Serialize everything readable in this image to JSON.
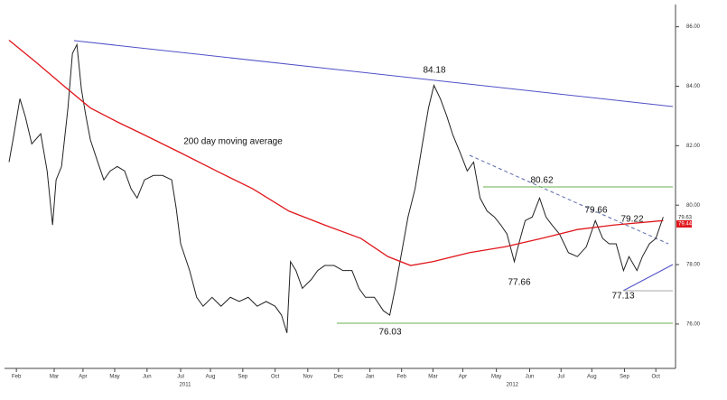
{
  "chart_data": {
    "type": "line",
    "xlim": [
      -0.23,
      20.5
    ],
    "ylim": [
      74.6,
      86.9
    ],
    "xticks": [
      {
        "value": 0,
        "label": "Feb"
      },
      {
        "value": 1.18,
        "label": "Mar"
      },
      {
        "value": 2.08,
        "label": "Apr"
      },
      {
        "value": 3.07,
        "label": "May"
      },
      {
        "value": 4.08,
        "label": "Jun"
      },
      {
        "value": 5.13,
        "label": "Jul"
      },
      {
        "value": 6.06,
        "label": "Aug"
      },
      {
        "value": 7.07,
        "label": "Sep"
      },
      {
        "value": 8.08,
        "label": "Oct"
      },
      {
        "value": 9.1,
        "label": "Nov"
      },
      {
        "value": 10.06,
        "label": "Dec"
      },
      {
        "value": 11.04,
        "label": "Jan"
      },
      {
        "value": 12.03,
        "label": "Feb"
      },
      {
        "value": 13.01,
        "label": "Mar"
      },
      {
        "value": 13.94,
        "label": "Apr"
      },
      {
        "value": 14.99,
        "label": "May"
      },
      {
        "value": 16.03,
        "label": "Jun"
      },
      {
        "value": 17.01,
        "label": "Jul"
      },
      {
        "value": 17.97,
        "label": "Aug"
      },
      {
        "value": 18.99,
        "label": "Sep"
      },
      {
        "value": 19.97,
        "label": "Oct"
      }
    ],
    "years": [
      {
        "value": 5.27,
        "label": "2011"
      },
      {
        "value": 15.49,
        "label": "2012"
      }
    ],
    "yticks": [
      {
        "value": 76,
        "label": "76.00"
      },
      {
        "value": 78,
        "label": "78.00"
      },
      {
        "value": 80,
        "label": "80.00"
      },
      {
        "value": 82,
        "label": "82.00"
      },
      {
        "value": 84,
        "label": "84.00"
      },
      {
        "value": 86,
        "label": "86.00"
      }
    ],
    "series": [
      {
        "color": "#222222",
        "x": [
          -0.23,
          -0.08,
          0.11,
          0.28,
          0.48,
          0.76,
          0.96,
          1.13,
          1.24,
          1.41,
          1.61,
          1.75,
          1.89,
          2.03,
          2.17,
          2.31,
          2.54,
          2.73,
          2.93,
          3.15,
          3.38,
          3.58,
          3.77,
          4,
          4.28,
          4.56,
          4.85,
          4.99,
          5.13,
          5.41,
          5.63,
          5.83,
          6.11,
          6.39,
          6.68,
          6.96,
          7.24,
          7.52,
          7.8,
          8.08,
          8.28,
          8.45,
          8.56,
          8.73,
          8.93,
          9.21,
          9.41,
          9.63,
          9.92,
          10.2,
          10.48,
          10.7,
          10.9,
          11.18,
          11.46,
          11.66,
          11.83,
          12.03,
          12.23,
          12.45,
          12.68,
          12.87,
          13.04,
          13.24,
          13.44,
          13.63,
          13.86,
          14.08,
          14.28,
          14.48,
          14.7,
          14.93,
          15.13,
          15.32,
          15.55,
          15.69,
          15.89,
          16.11,
          16.34,
          16.54,
          16.73,
          16.96,
          17.24,
          17.52,
          17.8,
          18.08,
          18.31,
          18.51,
          18.73,
          18.96,
          19.13,
          19.38,
          19.55,
          19.77,
          19.97,
          20.2
        ],
        "values": [
          81.45,
          82.36,
          83.58,
          82.97,
          82.06,
          82.4,
          81.15,
          79.33,
          80.85,
          81.3,
          83.27,
          85.1,
          85.4,
          83.9,
          83,
          82.2,
          81.45,
          80.85,
          81.15,
          81.3,
          81.15,
          80.55,
          80.24,
          80.85,
          81,
          81,
          80.85,
          79.9,
          78.7,
          77.8,
          76.9,
          76.6,
          76.9,
          76.6,
          76.9,
          76.76,
          76.9,
          76.6,
          76.76,
          76.6,
          76.3,
          75.7,
          78.1,
          77.8,
          77.2,
          77.5,
          77.8,
          77.97,
          77.97,
          77.8,
          77.8,
          77.2,
          76.9,
          76.9,
          76.45,
          76.3,
          77.2,
          78.4,
          79.6,
          80.55,
          82.06,
          83.27,
          84.03,
          83.58,
          83,
          82.36,
          81.76,
          81.15,
          81.45,
          80.24,
          79.8,
          79.6,
          79.33,
          79.03,
          78.1,
          78.7,
          79.48,
          79.6,
          80.24,
          79.6,
          79.33,
          79.03,
          78.4,
          78.27,
          78.6,
          79.48,
          78.88,
          78.7,
          78.7,
          77.8,
          78.27,
          77.8,
          78.27,
          78.7,
          78.88,
          79.6
        ]
      },
      {
        "color": "#e0161b",
        "x": [
          -0.23,
          0.62,
          1.46,
          2.31,
          3.15,
          4,
          5.13,
          6.25,
          7.38,
          8.51,
          9.63,
          10.76,
          11.6,
          12.31,
          13.01,
          14.14,
          15.27,
          16.39,
          17.52,
          18.65,
          20.2
        ],
        "values": [
          85.55,
          84.8,
          84.03,
          83.27,
          82.8,
          82.36,
          81.76,
          81.15,
          80.55,
          79.8,
          79.33,
          78.88,
          78.27,
          77.97,
          78.1,
          78.4,
          78.6,
          78.88,
          79.18,
          79.33,
          79.48
        ]
      }
    ],
    "annotations": [
      "84.18",
      "80.62",
      "79.66",
      "79.22",
      "77.66",
      "77.13",
      "76.03",
      "200 day moving average"
    ],
    "last_labels": [
      "79.63",
      "79.44"
    ]
  }
}
